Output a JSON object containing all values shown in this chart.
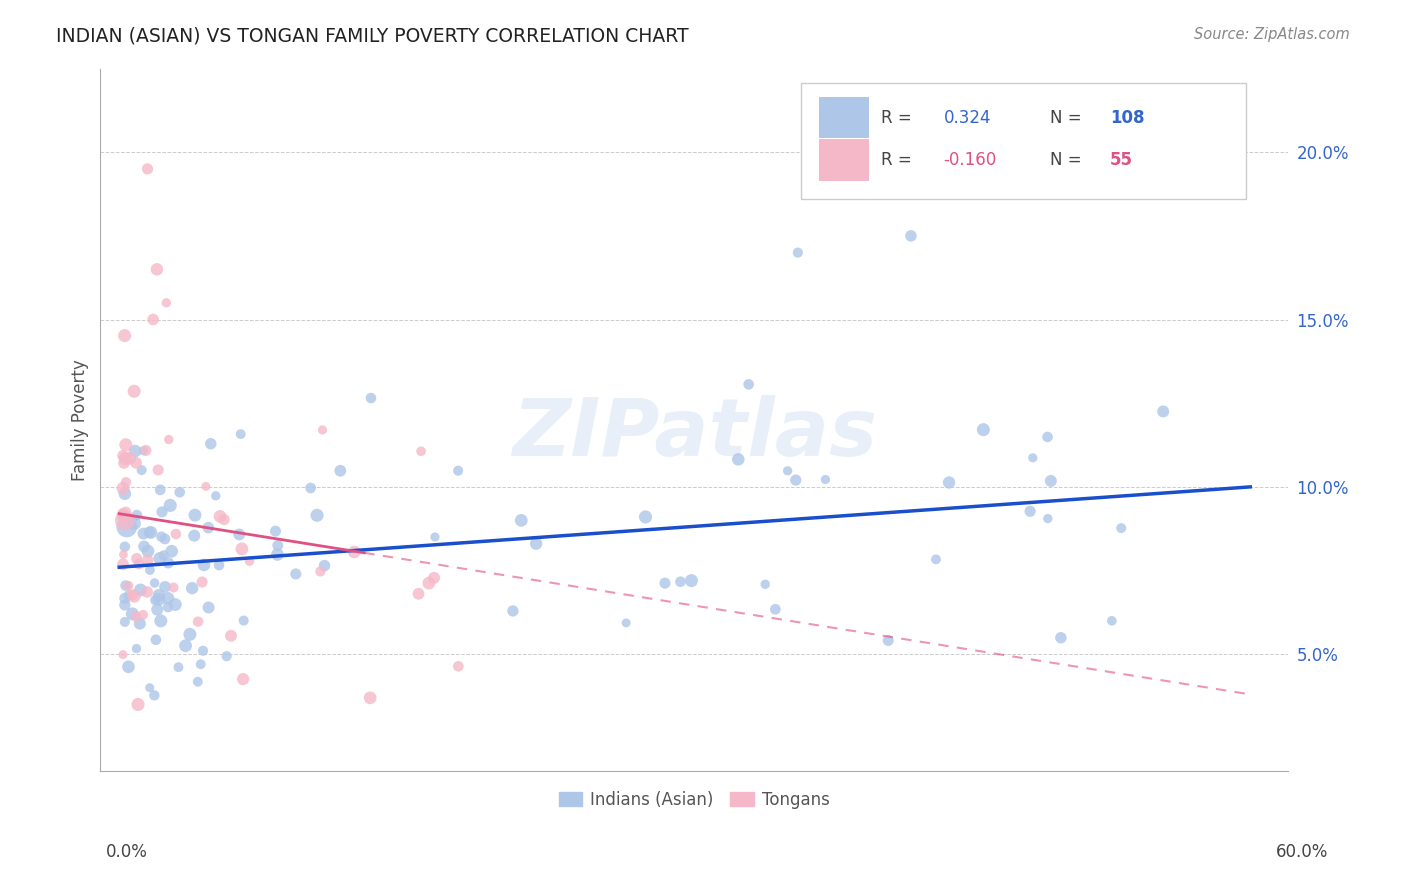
{
  "title": "INDIAN (ASIAN) VS TONGAN FAMILY POVERTY CORRELATION CHART",
  "source": "Source: ZipAtlas.com",
  "ylabel": "Family Poverty",
  "ytick_values": [
    5.0,
    10.0,
    15.0,
    20.0
  ],
  "ytick_labels": [
    "5.0%",
    "10.0%",
    "15.0%",
    "20.0%"
  ],
  "xlim": [
    0.0,
    60.0
  ],
  "ylim": [
    2.0,
    22.0
  ],
  "legend_blue_r": "0.324",
  "legend_blue_n": "108",
  "legend_pink_r": "-0.160",
  "legend_pink_n": "55",
  "blue_color": "#aec6e8",
  "pink_color": "#f5b8c8",
  "blue_line_color": "#1a4fcc",
  "pink_line_color": "#e05080",
  "watermark": "ZIPatlas",
  "blue_line_x0": 0.0,
  "blue_line_y0": 7.6,
  "blue_line_x1": 60.0,
  "blue_line_y1": 10.0,
  "pink_line_x0": 0.0,
  "pink_line_y0": 9.2,
  "pink_line_x1": 60.0,
  "pink_line_y1": 3.8,
  "pink_solid_end_x": 13.0
}
